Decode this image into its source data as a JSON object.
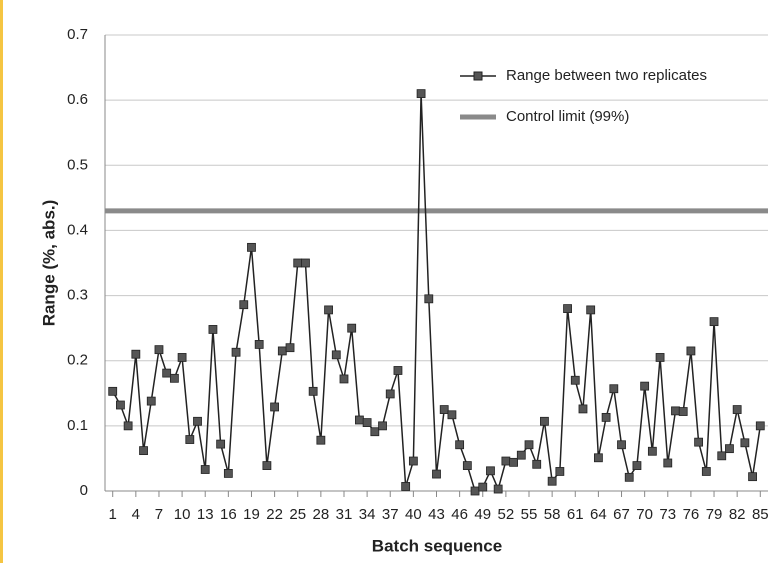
{
  "chart_data": {
    "type": "line",
    "x_label": "Batch sequence",
    "y_label": "Range (%, abs.)",
    "x": [
      1,
      2,
      3,
      4,
      5,
      6,
      7,
      8,
      9,
      10,
      11,
      12,
      13,
      14,
      15,
      16,
      17,
      18,
      19,
      20,
      21,
      22,
      23,
      24,
      25,
      26,
      27,
      28,
      29,
      30,
      31,
      32,
      33,
      34,
      35,
      36,
      37,
      38,
      39,
      40,
      41,
      42,
      43,
      44,
      45,
      46,
      47,
      48,
      49,
      50,
      51,
      52,
      53,
      54,
      55,
      56,
      57,
      58,
      59,
      60,
      61,
      62,
      63,
      64,
      65,
      66,
      67,
      68,
      69,
      70,
      71,
      72,
      73,
      74,
      75,
      76,
      77,
      78,
      79,
      80,
      81,
      82,
      83,
      84,
      85
    ],
    "series": [
      {
        "name": "Range between two replicates",
        "color": "#222222",
        "values": [
          0.153,
          0.132,
          0.1,
          0.21,
          0.062,
          0.138,
          0.217,
          0.181,
          0.173,
          0.205,
          0.079,
          0.107,
          0.033,
          0.248,
          0.072,
          0.027,
          0.213,
          0.286,
          0.374,
          0.225,
          0.039,
          0.129,
          0.215,
          0.22,
          0.35,
          0.35,
          0.153,
          0.078,
          0.278,
          0.209,
          0.172,
          0.25,
          0.109,
          0.105,
          0.091,
          0.1,
          0.149,
          0.185,
          0.007,
          0.046,
          0.61,
          0.295,
          0.026,
          0.125,
          0.117,
          0.071,
          0.039,
          0.0,
          0.006,
          0.031,
          0.003,
          0.046,
          0.044,
          0.055,
          0.071,
          0.041,
          0.107,
          0.015,
          0.03,
          0.28,
          0.17,
          0.126,
          0.278,
          0.051,
          0.113,
          0.157,
          0.071,
          0.021,
          0.039,
          0.161,
          0.061,
          0.205,
          0.043,
          0.123,
          0.122,
          0.215,
          0.075,
          0.03,
          0.26,
          0.054,
          0.065,
          0.125,
          0.074,
          0.022,
          0.1
        ]
      }
    ],
    "control_limit": {
      "name": "Control limit (99%)",
      "value": 0.43,
      "color": "#8a8a8a"
    },
    "xlim": [
      0,
      86
    ],
    "xticks": [
      1,
      4,
      7,
      10,
      13,
      16,
      19,
      22,
      25,
      28,
      31,
      34,
      37,
      40,
      43,
      46,
      49,
      52,
      55,
      58,
      61,
      64,
      67,
      70,
      73,
      76,
      79,
      82,
      85
    ],
    "ylim": [
      0,
      0.7
    ],
    "yticks": [
      0,
      0.1,
      0.2,
      0.3,
      0.4,
      0.5,
      0.6,
      0.7
    ],
    "grid": true,
    "legend": "upper right"
  }
}
